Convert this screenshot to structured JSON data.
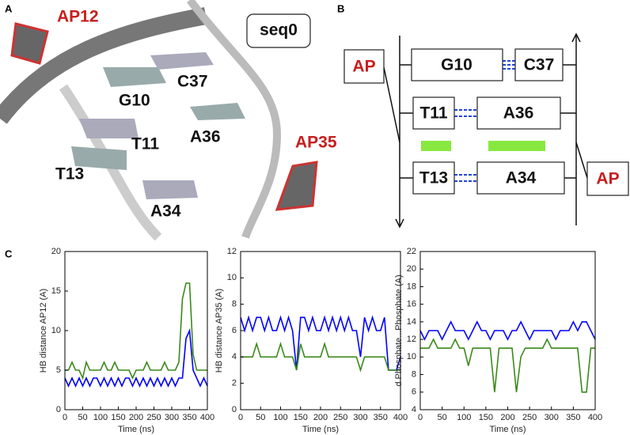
{
  "panel_labels": [
    "A",
    "B",
    "C"
  ],
  "structure": {
    "labels": [
      "AP12",
      "seq0",
      "G10",
      "C37",
      "A36",
      "T11",
      "AP35",
      "T13",
      "A34"
    ]
  },
  "diagram": {
    "nodes": [
      "AP",
      "G10",
      "C37",
      "T11",
      "A36",
      "T13",
      "A34",
      "AP"
    ]
  },
  "chart_data": [
    {
      "type": "line",
      "ylabel": "HB distance AP12 (A)",
      "xlabel": "Time (ns)",
      "x": [
        0,
        10,
        20,
        30,
        40,
        50,
        60,
        70,
        80,
        90,
        100,
        110,
        120,
        130,
        140,
        150,
        160,
        170,
        180,
        190,
        200,
        210,
        220,
        230,
        240,
        250,
        260,
        270,
        280,
        290,
        300,
        310,
        320,
        330,
        340,
        350,
        360,
        370,
        380,
        390,
        400
      ],
      "series": [
        {
          "color": "#0000ff",
          "values": [
            4,
            3,
            4,
            3,
            4,
            3,
            4,
            3,
            4,
            4,
            3,
            4,
            3,
            4,
            3,
            4,
            3,
            4,
            4,
            3,
            4,
            3,
            4,
            3,
            4,
            3,
            4,
            3,
            4,
            3,
            4,
            3,
            4,
            4,
            9,
            10,
            5,
            4,
            3,
            4,
            3
          ]
        },
        {
          "color": "#3a8a1a",
          "values": [
            5,
            5,
            6,
            5,
            5,
            4,
            6,
            5,
            5,
            5,
            5,
            6,
            5,
            5,
            6,
            5,
            5,
            5,
            5,
            4,
            5,
            5,
            5,
            6,
            5,
            5,
            5,
            5,
            6,
            5,
            5,
            5,
            6,
            14,
            16,
            16,
            7,
            5,
            5,
            5,
            5
          ]
        }
      ],
      "xlim": [
        0,
        400
      ],
      "xticks": [
        0,
        50,
        100,
        150,
        200,
        250,
        300,
        350,
        400
      ],
      "ylim": [
        0,
        20
      ],
      "yticks": [
        0,
        5,
        10,
        15,
        20
      ]
    },
    {
      "type": "line",
      "ylabel": "HB distance AP35 (A)",
      "xlabel": "Time (ns)",
      "x": [
        0,
        10,
        20,
        30,
        40,
        50,
        60,
        70,
        80,
        90,
        100,
        110,
        120,
        130,
        140,
        150,
        160,
        170,
        180,
        190,
        200,
        210,
        220,
        230,
        240,
        250,
        260,
        270,
        280,
        290,
        300,
        310,
        320,
        330,
        340,
        350,
        360,
        370,
        380,
        390,
        400
      ],
      "series": [
        {
          "color": "#0000ff",
          "values": [
            7,
            6,
            7,
            6,
            7,
            7,
            6,
            7,
            6,
            6,
            7,
            6,
            7,
            6,
            3,
            7,
            7,
            6,
            7,
            6,
            6,
            7,
            6,
            7,
            6,
            7,
            6,
            7,
            6,
            6,
            4,
            7,
            6,
            7,
            6,
            6,
            7,
            3,
            3,
            3,
            4
          ]
        },
        {
          "color": "#3a8a1a",
          "values": [
            4,
            4,
            4,
            4,
            5,
            4,
            4,
            4,
            4,
            4,
            5,
            4,
            4,
            4,
            3,
            5,
            4,
            4,
            4,
            4,
            4,
            5,
            4,
            4,
            4,
            4,
            4,
            4,
            4,
            4,
            3,
            4,
            4,
            4,
            4,
            4,
            4,
            3,
            3,
            3,
            3
          ]
        }
      ],
      "xlim": [
        0,
        400
      ],
      "xticks": [
        0,
        50,
        100,
        150,
        200,
        250,
        300,
        350,
        400
      ],
      "ylim": [
        0,
        12
      ],
      "yticks": [
        0,
        2,
        4,
        6,
        8,
        10,
        12
      ]
    },
    {
      "type": "line",
      "ylabel": "d Phosphate...Phosphate (A)",
      "xlabel": "Time (ns)",
      "x": [
        0,
        10,
        20,
        30,
        40,
        50,
        60,
        70,
        80,
        90,
        100,
        110,
        120,
        130,
        140,
        150,
        160,
        170,
        180,
        190,
        200,
        210,
        220,
        230,
        240,
        250,
        260,
        270,
        280,
        290,
        300,
        310,
        320,
        330,
        340,
        350,
        360,
        370,
        380,
        390,
        400
      ],
      "series": [
        {
          "color": "#0000ff",
          "values": [
            13,
            12,
            13,
            13,
            13,
            12,
            13,
            14,
            13,
            13,
            13,
            12,
            13,
            14,
            13,
            13,
            12,
            13,
            13,
            13,
            12,
            13,
            13,
            14,
            13,
            12,
            13,
            13,
            13,
            13,
            13,
            12,
            13,
            13,
            13,
            14,
            13,
            14,
            14,
            13,
            12
          ]
        },
        {
          "color": "#3a8a1a",
          "values": [
            11,
            11,
            11,
            12,
            11,
            11,
            11,
            11,
            12,
            11,
            11,
            9,
            11,
            11,
            11,
            11,
            11,
            6,
            11,
            11,
            11,
            11,
            6,
            10,
            11,
            11,
            11,
            11,
            11,
            12,
            11,
            11,
            11,
            11,
            11,
            11,
            11,
            6,
            6,
            11,
            11
          ]
        }
      ],
      "xlim": [
        0,
        400
      ],
      "xticks": [
        0,
        50,
        100,
        150,
        200,
        250,
        300,
        350,
        400
      ],
      "ylim": [
        4,
        22
      ],
      "yticks": [
        4,
        6,
        8,
        10,
        12,
        14,
        16,
        18,
        20,
        22
      ]
    }
  ]
}
